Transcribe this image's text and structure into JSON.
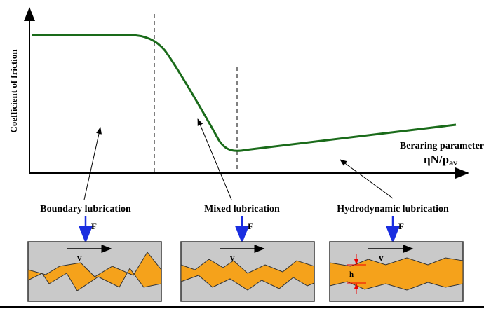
{
  "axes": {
    "y_label": "Coefficient of friction",
    "x_label": "Beraring parameter",
    "x_symbol": "ηN/p",
    "x_symbol_sub": "av"
  },
  "regimes": [
    {
      "label": "Boundary lubrication",
      "force": "F",
      "velocity": "v"
    },
    {
      "label": "Mixed lubrication",
      "force": "F",
      "velocity": "v"
    },
    {
      "label": "Hydrodynamic lubrication",
      "force": "F",
      "velocity": "v",
      "film_thickness": "h"
    }
  ]
}
